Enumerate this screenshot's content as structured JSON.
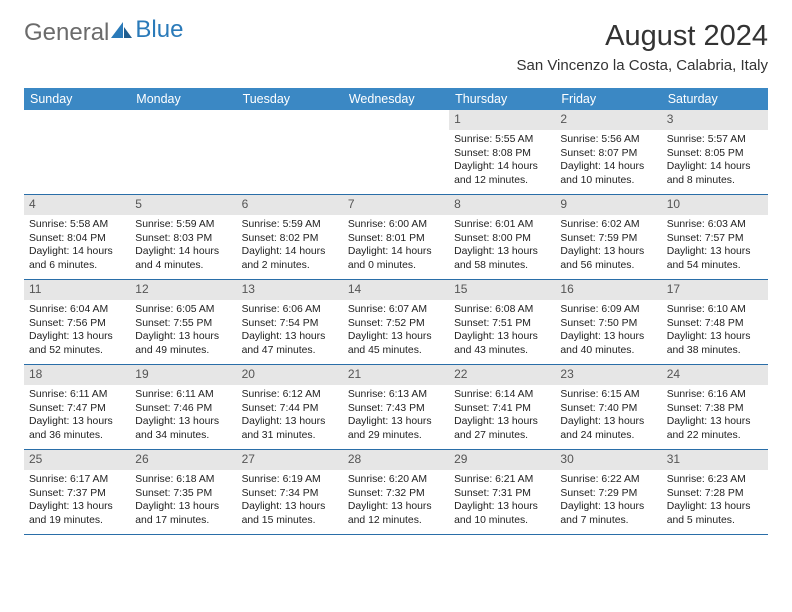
{
  "logo": {
    "text1": "General",
    "text2": "Blue"
  },
  "title": "August 2024",
  "subtitle": "San Vincenzo la Costa, Calabria, Italy",
  "colors": {
    "header_bg": "#3b88c4",
    "header_text": "#ffffff",
    "week_border": "#2a6ea8",
    "daynum_bg": "#e6e6e6",
    "daynum_text": "#555555",
    "body_text": "#222222",
    "logo_gray": "#6b6b6b",
    "logo_blue": "#2a7ab9"
  },
  "typography": {
    "title_fontsize": 29,
    "subtitle_fontsize": 15,
    "dow_fontsize": 12.5,
    "daynum_fontsize": 12,
    "body_fontsize": 10.4
  },
  "days_of_week": [
    "Sunday",
    "Monday",
    "Tuesday",
    "Wednesday",
    "Thursday",
    "Friday",
    "Saturday"
  ],
  "weeks": [
    [
      {
        "empty": true
      },
      {
        "empty": true
      },
      {
        "empty": true
      },
      {
        "empty": true
      },
      {
        "day": "1",
        "sunrise": "Sunrise: 5:55 AM",
        "sunset": "Sunset: 8:08 PM",
        "daylight": "Daylight: 14 hours and 12 minutes."
      },
      {
        "day": "2",
        "sunrise": "Sunrise: 5:56 AM",
        "sunset": "Sunset: 8:07 PM",
        "daylight": "Daylight: 14 hours and 10 minutes."
      },
      {
        "day": "3",
        "sunrise": "Sunrise: 5:57 AM",
        "sunset": "Sunset: 8:05 PM",
        "daylight": "Daylight: 14 hours and 8 minutes."
      }
    ],
    [
      {
        "day": "4",
        "sunrise": "Sunrise: 5:58 AM",
        "sunset": "Sunset: 8:04 PM",
        "daylight": "Daylight: 14 hours and 6 minutes."
      },
      {
        "day": "5",
        "sunrise": "Sunrise: 5:59 AM",
        "sunset": "Sunset: 8:03 PM",
        "daylight": "Daylight: 14 hours and 4 minutes."
      },
      {
        "day": "6",
        "sunrise": "Sunrise: 5:59 AM",
        "sunset": "Sunset: 8:02 PM",
        "daylight": "Daylight: 14 hours and 2 minutes."
      },
      {
        "day": "7",
        "sunrise": "Sunrise: 6:00 AM",
        "sunset": "Sunset: 8:01 PM",
        "daylight": "Daylight: 14 hours and 0 minutes."
      },
      {
        "day": "8",
        "sunrise": "Sunrise: 6:01 AM",
        "sunset": "Sunset: 8:00 PM",
        "daylight": "Daylight: 13 hours and 58 minutes."
      },
      {
        "day": "9",
        "sunrise": "Sunrise: 6:02 AM",
        "sunset": "Sunset: 7:59 PM",
        "daylight": "Daylight: 13 hours and 56 minutes."
      },
      {
        "day": "10",
        "sunrise": "Sunrise: 6:03 AM",
        "sunset": "Sunset: 7:57 PM",
        "daylight": "Daylight: 13 hours and 54 minutes."
      }
    ],
    [
      {
        "day": "11",
        "sunrise": "Sunrise: 6:04 AM",
        "sunset": "Sunset: 7:56 PM",
        "daylight": "Daylight: 13 hours and 52 minutes."
      },
      {
        "day": "12",
        "sunrise": "Sunrise: 6:05 AM",
        "sunset": "Sunset: 7:55 PM",
        "daylight": "Daylight: 13 hours and 49 minutes."
      },
      {
        "day": "13",
        "sunrise": "Sunrise: 6:06 AM",
        "sunset": "Sunset: 7:54 PM",
        "daylight": "Daylight: 13 hours and 47 minutes."
      },
      {
        "day": "14",
        "sunrise": "Sunrise: 6:07 AM",
        "sunset": "Sunset: 7:52 PM",
        "daylight": "Daylight: 13 hours and 45 minutes."
      },
      {
        "day": "15",
        "sunrise": "Sunrise: 6:08 AM",
        "sunset": "Sunset: 7:51 PM",
        "daylight": "Daylight: 13 hours and 43 minutes."
      },
      {
        "day": "16",
        "sunrise": "Sunrise: 6:09 AM",
        "sunset": "Sunset: 7:50 PM",
        "daylight": "Daylight: 13 hours and 40 minutes."
      },
      {
        "day": "17",
        "sunrise": "Sunrise: 6:10 AM",
        "sunset": "Sunset: 7:48 PM",
        "daylight": "Daylight: 13 hours and 38 minutes."
      }
    ],
    [
      {
        "day": "18",
        "sunrise": "Sunrise: 6:11 AM",
        "sunset": "Sunset: 7:47 PM",
        "daylight": "Daylight: 13 hours and 36 minutes."
      },
      {
        "day": "19",
        "sunrise": "Sunrise: 6:11 AM",
        "sunset": "Sunset: 7:46 PM",
        "daylight": "Daylight: 13 hours and 34 minutes."
      },
      {
        "day": "20",
        "sunrise": "Sunrise: 6:12 AM",
        "sunset": "Sunset: 7:44 PM",
        "daylight": "Daylight: 13 hours and 31 minutes."
      },
      {
        "day": "21",
        "sunrise": "Sunrise: 6:13 AM",
        "sunset": "Sunset: 7:43 PM",
        "daylight": "Daylight: 13 hours and 29 minutes."
      },
      {
        "day": "22",
        "sunrise": "Sunrise: 6:14 AM",
        "sunset": "Sunset: 7:41 PM",
        "daylight": "Daylight: 13 hours and 27 minutes."
      },
      {
        "day": "23",
        "sunrise": "Sunrise: 6:15 AM",
        "sunset": "Sunset: 7:40 PM",
        "daylight": "Daylight: 13 hours and 24 minutes."
      },
      {
        "day": "24",
        "sunrise": "Sunrise: 6:16 AM",
        "sunset": "Sunset: 7:38 PM",
        "daylight": "Daylight: 13 hours and 22 minutes."
      }
    ],
    [
      {
        "day": "25",
        "sunrise": "Sunrise: 6:17 AM",
        "sunset": "Sunset: 7:37 PM",
        "daylight": "Daylight: 13 hours and 19 minutes."
      },
      {
        "day": "26",
        "sunrise": "Sunrise: 6:18 AM",
        "sunset": "Sunset: 7:35 PM",
        "daylight": "Daylight: 13 hours and 17 minutes."
      },
      {
        "day": "27",
        "sunrise": "Sunrise: 6:19 AM",
        "sunset": "Sunset: 7:34 PM",
        "daylight": "Daylight: 13 hours and 15 minutes."
      },
      {
        "day": "28",
        "sunrise": "Sunrise: 6:20 AM",
        "sunset": "Sunset: 7:32 PM",
        "daylight": "Daylight: 13 hours and 12 minutes."
      },
      {
        "day": "29",
        "sunrise": "Sunrise: 6:21 AM",
        "sunset": "Sunset: 7:31 PM",
        "daylight": "Daylight: 13 hours and 10 minutes."
      },
      {
        "day": "30",
        "sunrise": "Sunrise: 6:22 AM",
        "sunset": "Sunset: 7:29 PM",
        "daylight": "Daylight: 13 hours and 7 minutes."
      },
      {
        "day": "31",
        "sunrise": "Sunrise: 6:23 AM",
        "sunset": "Sunset: 7:28 PM",
        "daylight": "Daylight: 13 hours and 5 minutes."
      }
    ]
  ]
}
